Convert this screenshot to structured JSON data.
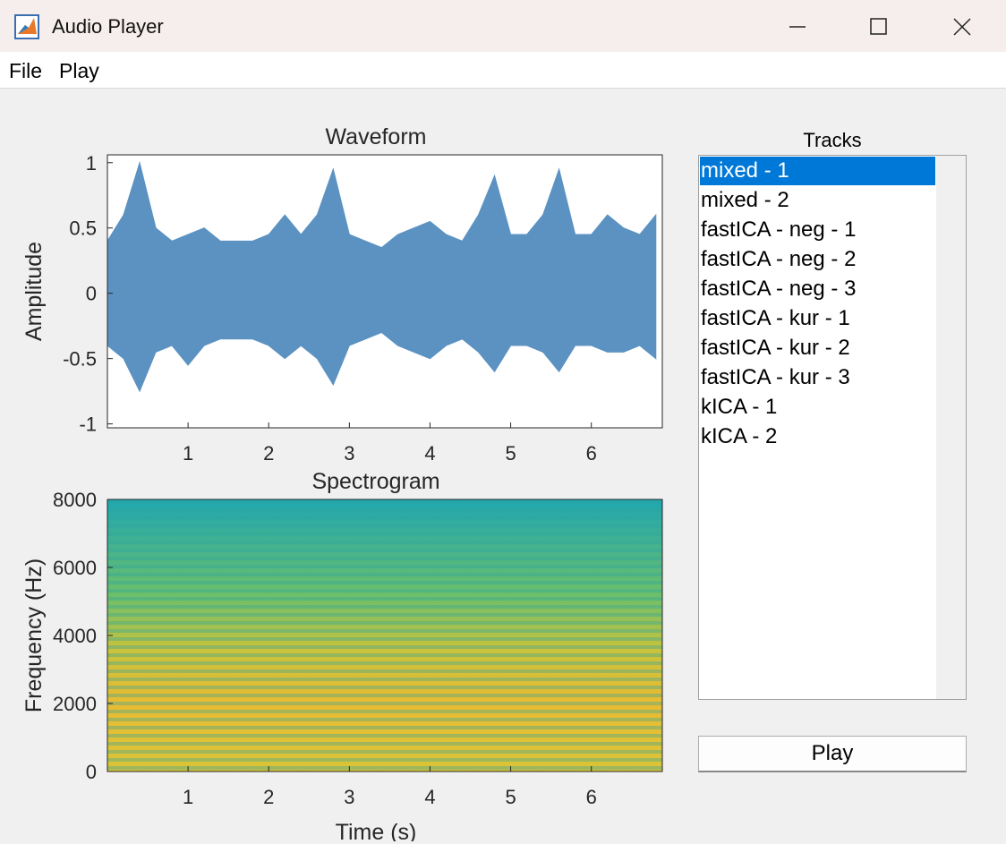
{
  "window": {
    "title": "Audio Player"
  },
  "menu": [
    "File",
    "Play"
  ],
  "chart_data": [
    {
      "type": "area",
      "title": "Waveform",
      "ylabel": "Amplitude",
      "color": "#5b92c2",
      "x": [
        0,
        0.2,
        0.4,
        0.6,
        0.8,
        1.0,
        1.2,
        1.4,
        1.6,
        1.8,
        2.0,
        2.2,
        2.4,
        2.6,
        2.8,
        3.0,
        3.2,
        3.4,
        3.6,
        3.8,
        4.0,
        4.2,
        4.4,
        4.6,
        4.8,
        5.0,
        5.2,
        5.4,
        5.6,
        5.8,
        6.0,
        6.2,
        6.4,
        6.6,
        6.8
      ],
      "series": [
        {
          "color": "#5b92c2",
          "values": [
            0.4,
            0.6,
            1.0,
            0.5,
            0.4,
            0.45,
            0.5,
            0.4,
            0.4,
            0.4,
            0.45,
            0.6,
            0.45,
            0.6,
            0.95,
            0.45,
            0.4,
            0.35,
            0.45,
            0.5,
            0.55,
            0.45,
            0.4,
            0.6,
            0.9,
            0.45,
            0.45,
            0.6,
            0.95,
            0.45,
            0.45,
            0.6,
            0.5,
            0.45,
            0.6
          ]
        },
        {
          "color": "#5b92c2",
          "values": [
            -0.4,
            -0.5,
            -0.75,
            -0.45,
            -0.4,
            -0.55,
            -0.4,
            -0.35,
            -0.35,
            -0.35,
            -0.4,
            -0.5,
            -0.4,
            -0.5,
            -0.7,
            -0.4,
            -0.35,
            -0.3,
            -0.4,
            -0.45,
            -0.5,
            -0.4,
            -0.35,
            -0.45,
            -0.6,
            -0.4,
            -0.4,
            -0.45,
            -0.6,
            -0.4,
            -0.4,
            -0.45,
            -0.45,
            -0.4,
            -0.5
          ]
        }
      ],
      "xlim": [
        0,
        6.88
      ],
      "xticks": [
        1,
        2,
        3,
        4,
        5,
        6
      ],
      "ylim": [
        -1.03,
        1.06
      ],
      "yticks": [
        -1,
        -0.5,
        0,
        0.5,
        1
      ]
    },
    {
      "type": "spectrogram",
      "title": "Spectrogram",
      "xlabel": "Time (s)",
      "ylabel": "Frequency (Hz)",
      "xlim": [
        0,
        6.88
      ],
      "xticks": [
        1,
        2,
        3,
        4,
        5,
        6
      ],
      "ylim": [
        0,
        8000
      ],
      "yticks": [
        0,
        2000,
        4000,
        6000,
        8000
      ]
    }
  ],
  "tracks": {
    "label": "Tracks",
    "selected": 0,
    "items": [
      "mixed - 1",
      "mixed - 2",
      "fastICA - neg - 1",
      "fastICA - neg - 2",
      "fastICA - neg - 3",
      "fastICA - kur - 1",
      "fastICA - kur - 2",
      "fastICA - kur - 3",
      "kICA - 1",
      "kICA - 2"
    ]
  },
  "button": "Play"
}
